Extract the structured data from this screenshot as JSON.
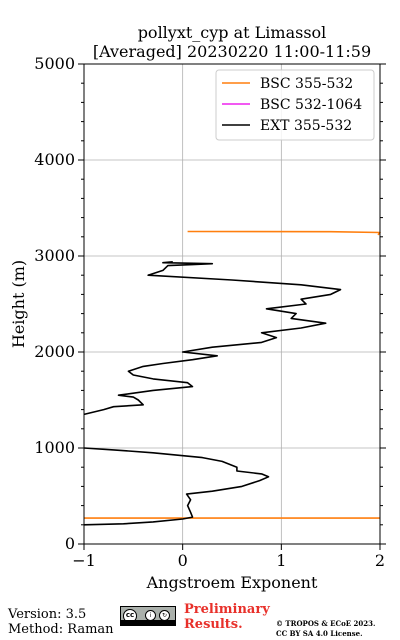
{
  "chart_data": {
    "type": "line",
    "title": "pollyxt_cyp at Limassol",
    "subtitle": "[Averaged] 20230220 11:00-11:59",
    "xlabel": "Angstroem Exponent",
    "ylabel": "Height (m)",
    "xlim": [
      -1,
      2
    ],
    "ylim": [
      0,
      5000
    ],
    "xticks": [
      -1,
      0,
      1,
      2
    ],
    "yticks": [
      0,
      1000,
      2000,
      3000,
      4000,
      5000
    ],
    "grid": true,
    "legend_position": "top-right",
    "series": [
      {
        "name": "BSC 355-532",
        "color": "#ff7f0e",
        "points": [
          [
            -1,
            270
          ],
          [
            2,
            270
          ],
          null,
          [
            0.05,
            3255
          ],
          [
            1.5,
            3253
          ],
          [
            2,
            3245
          ],
          [
            1.98,
            3220
          ]
        ]
      },
      {
        "name": "BSC 532-1064",
        "color": "#ee22ee",
        "points": []
      },
      {
        "name": "EXT 355-532",
        "color": "#000000",
        "points": [
          [
            -1,
            200
          ],
          [
            -0.6,
            210
          ],
          [
            -0.3,
            230
          ],
          [
            0,
            260
          ],
          [
            0.1,
            280
          ],
          [
            0.08,
            330
          ],
          [
            0.05,
            400
          ],
          [
            0.08,
            460
          ],
          [
            0.04,
            520
          ],
          [
            0.3,
            550
          ],
          [
            0.6,
            600
          ],
          [
            0.78,
            660
          ],
          [
            0.87,
            700
          ],
          [
            0.8,
            730
          ],
          [
            0.55,
            760
          ],
          [
            0.55,
            800
          ],
          [
            0.4,
            860
          ],
          [
            0.2,
            900
          ],
          [
            -0.3,
            950
          ],
          [
            -0.7,
            980
          ],
          [
            -1,
            1000
          ],
          null,
          [
            -1,
            1350
          ],
          [
            -0.8,
            1400
          ],
          [
            -0.7,
            1430
          ],
          [
            -0.4,
            1450
          ],
          [
            -0.45,
            1500
          ],
          [
            -0.5,
            1530
          ],
          [
            -0.65,
            1550
          ],
          [
            -0.3,
            1600
          ],
          [
            0.1,
            1640
          ],
          [
            0.05,
            1680
          ],
          [
            -0.3,
            1720
          ],
          [
            -0.5,
            1760
          ],
          [
            -0.55,
            1800
          ],
          [
            -0.4,
            1850
          ],
          [
            -0.2,
            1880
          ],
          [
            0.1,
            1920
          ],
          [
            0.35,
            1960
          ],
          [
            0,
            2000
          ],
          [
            0.3,
            2050
          ],
          [
            0.8,
            2100
          ],
          [
            0.95,
            2150
          ],
          [
            0.8,
            2200
          ],
          [
            1.2,
            2250
          ],
          [
            1.45,
            2300
          ],
          [
            1.1,
            2350
          ],
          [
            1.15,
            2400
          ],
          [
            0.85,
            2450
          ],
          [
            1.25,
            2500
          ],
          [
            1.2,
            2550
          ],
          [
            1.5,
            2600
          ],
          [
            1.6,
            2650
          ],
          [
            1.2,
            2700
          ],
          [
            0.5,
            2750
          ],
          [
            -0.35,
            2800
          ],
          [
            -0.2,
            2850
          ],
          [
            -0.15,
            2900
          ],
          [
            0.1,
            2910
          ],
          [
            0.3,
            2920
          ],
          [
            -0.2,
            2930
          ],
          [
            -0.1,
            2940
          ]
        ]
      }
    ]
  },
  "footer": {
    "version": "Version: 3.5",
    "method": "Method: Raman",
    "preliminary_line1": "Preliminary",
    "preliminary_line2": "Results.",
    "copyright_line1": "© TROPOS & ECoE 2023.",
    "copyright_line2": "CC BY SA 4.0 License.",
    "license_badge": "cc BY SA"
  }
}
